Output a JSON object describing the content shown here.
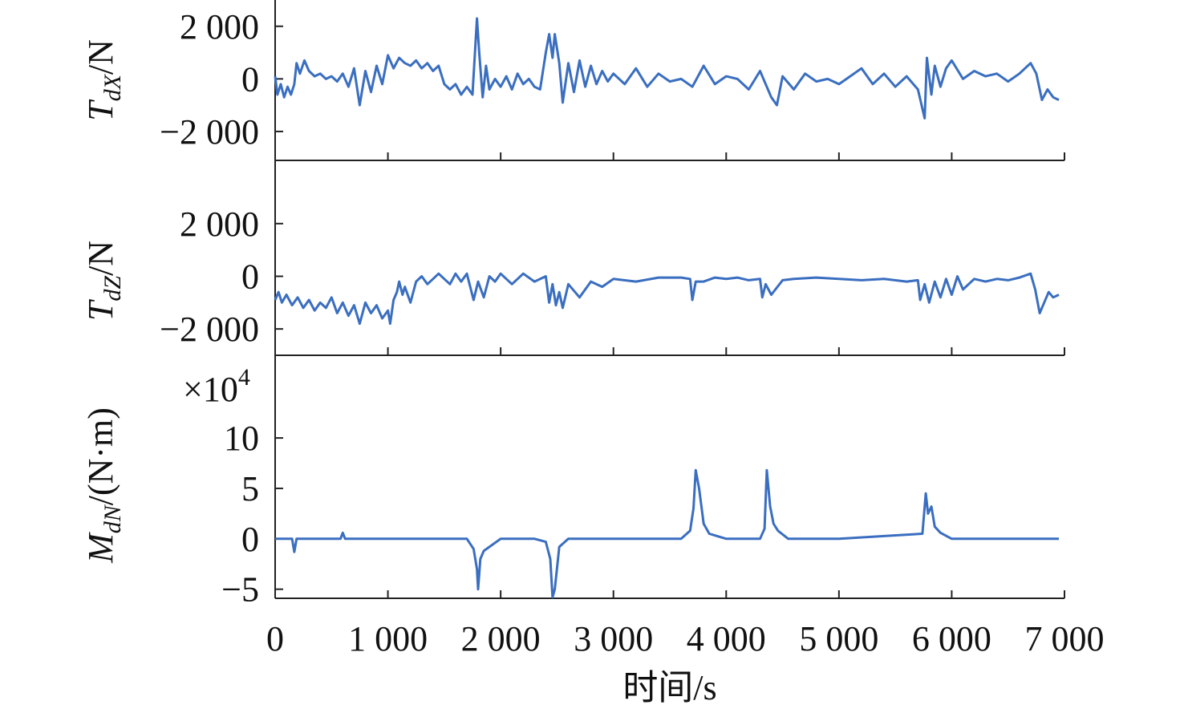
{
  "chart_data": [
    {
      "type": "line",
      "ylabel": {
        "main": "T",
        "sub": "dX",
        "unit": "/N"
      },
      "color": "#3a6ec0",
      "xlim": [
        0,
        7000
      ],
      "xticks": [
        0,
        1000,
        2000,
        3000,
        4000,
        5000,
        6000,
        7000
      ],
      "ylim": [
        -3100,
        3000
      ],
      "yticks": [
        {
          "value": 2000,
          "label": "2 000"
        },
        0,
        {
          "value": -2000,
          "label": "−2 000"
        }
      ],
      "x": [
        0,
        20,
        50,
        80,
        110,
        140,
        170,
        190,
        220,
        260,
        300,
        350,
        400,
        450,
        500,
        550,
        600,
        650,
        700,
        750,
        800,
        850,
        900,
        950,
        1000,
        1050,
        1100,
        1150,
        1200,
        1250,
        1300,
        1350,
        1400,
        1450,
        1500,
        1550,
        1600,
        1650,
        1700,
        1750,
        1790,
        1810,
        1840,
        1870,
        1900,
        1950,
        2000,
        2050,
        2100,
        2150,
        2200,
        2250,
        2300,
        2350,
        2400,
        2430,
        2460,
        2480,
        2520,
        2550,
        2600,
        2650,
        2700,
        2750,
        2800,
        2850,
        2900,
        2950,
        3000,
        3100,
        3200,
        3300,
        3400,
        3500,
        3600,
        3700,
        3800,
        3900,
        4000,
        4100,
        4200,
        4300,
        4400,
        4450,
        4500,
        4600,
        4700,
        4800,
        4900,
        5000,
        5100,
        5200,
        5300,
        5400,
        5500,
        5600,
        5700,
        5760,
        5780,
        5820,
        5850,
        5900,
        5950,
        6000,
        6100,
        6200,
        6300,
        6400,
        6500,
        6600,
        6700,
        6750,
        6800,
        6850,
        6900,
        6950
      ],
      "values": [
        100,
        -600,
        -200,
        -700,
        -300,
        -600,
        -200,
        600,
        200,
        700,
        300,
        100,
        200,
        0,
        100,
        -100,
        200,
        -300,
        400,
        -1000,
        300,
        -500,
        500,
        -200,
        900,
        400,
        800,
        600,
        500,
        700,
        400,
        600,
        300,
        500,
        -200,
        -400,
        -200,
        -600,
        -300,
        -600,
        2300,
        1000,
        -700,
        500,
        -400,
        0,
        -300,
        100,
        -400,
        200,
        -200,
        0,
        -300,
        -400,
        1000,
        1700,
        800,
        1700,
        600,
        -900,
        600,
        -500,
        700,
        -300,
        500,
        -200,
        300,
        -100,
        200,
        -200,
        400,
        -300,
        200,
        -100,
        0,
        -300,
        500,
        -200,
        100,
        0,
        -400,
        300,
        -700,
        -1000,
        100,
        -400,
        200,
        -100,
        0,
        -200,
        100,
        400,
        -200,
        200,
        -300,
        100,
        -400,
        -1500,
        800,
        -600,
        500,
        -300,
        400,
        700,
        0,
        300,
        100,
        200,
        -100,
        200,
        600,
        200,
        -800,
        -400,
        -700,
        -800
      ]
    },
    {
      "type": "line",
      "ylabel": {
        "main": "T",
        "sub": "dZ",
        "unit": "/N"
      },
      "color": "#3a6ec0",
      "xlim": [
        0,
        7000
      ],
      "xticks": [
        0,
        1000,
        2000,
        3000,
        4000,
        5000,
        6000,
        7000
      ],
      "ylim": [
        -3000,
        4400
      ],
      "yticks": [
        {
          "value": 2000,
          "label": "2 000"
        },
        0,
        {
          "value": -2000,
          "label": "−2 000"
        }
      ],
      "x": [
        0,
        30,
        60,
        100,
        150,
        200,
        250,
        300,
        350,
        400,
        450,
        500,
        550,
        600,
        650,
        700,
        750,
        800,
        850,
        900,
        950,
        1000,
        1020,
        1050,
        1080,
        1100,
        1130,
        1150,
        1200,
        1250,
        1300,
        1350,
        1400,
        1450,
        1500,
        1550,
        1600,
        1650,
        1700,
        1730,
        1760,
        1800,
        1850,
        1900,
        1950,
        2000,
        2100,
        2200,
        2300,
        2400,
        2430,
        2460,
        2490,
        2520,
        2550,
        2600,
        2700,
        2800,
        2900,
        3000,
        3200,
        3400,
        3600,
        3680,
        3700,
        3730,
        3800,
        3900,
        4000,
        4100,
        4200,
        4300,
        4320,
        4350,
        4400,
        4500,
        4600,
        4800,
        5000,
        5200,
        5400,
        5600,
        5700,
        5720,
        5760,
        5800,
        5850,
        5900,
        5950,
        6000,
        6050,
        6100,
        6200,
        6300,
        6400,
        6500,
        6600,
        6700,
        6740,
        6780,
        6820,
        6860,
        6900,
        6950
      ],
      "values": [
        -900,
        -600,
        -1000,
        -700,
        -1100,
        -800,
        -1200,
        -900,
        -1300,
        -1000,
        -1200,
        -800,
        -1400,
        -1000,
        -1500,
        -1100,
        -1800,
        -1000,
        -1400,
        -1100,
        -1600,
        -1300,
        -1800,
        -900,
        -600,
        -200,
        -700,
        -400,
        -1000,
        -200,
        0,
        -300,
        -100,
        100,
        -100,
        -300,
        100,
        -200,
        100,
        -400,
        -900,
        -200,
        -800,
        0,
        -200,
        100,
        -300,
        100,
        -200,
        0,
        -1000,
        -300,
        -1100,
        -600,
        -1200,
        -300,
        -800,
        -200,
        -400,
        -100,
        -200,
        -50,
        -50,
        -100,
        -900,
        -200,
        -200,
        -50,
        -100,
        -50,
        -150,
        -100,
        -800,
        -300,
        -700,
        -150,
        -100,
        -50,
        -100,
        -150,
        -100,
        -200,
        -150,
        -900,
        -300,
        -1000,
        -200,
        -800,
        -100,
        -700,
        0,
        -500,
        -100,
        -200,
        -100,
        -150,
        -50,
        100,
        -500,
        -1400,
        -1000,
        -600,
        -800,
        -700
      ]
    },
    {
      "type": "line",
      "ylabel": {
        "main": "M",
        "sub": "dN",
        "unit": "/(N·m)"
      },
      "multiplier": {
        "base": "×10",
        "exponent": "4"
      },
      "color": "#3a6ec0",
      "xlabel": "时间/s",
      "xlim": [
        0,
        7000
      ],
      "xticks": [
        0,
        {
          "value": 1000,
          "label": "1 000"
        },
        {
          "value": 2000,
          "label": "2 000"
        },
        {
          "value": 3000,
          "label": "3 000"
        },
        {
          "value": 4000,
          "label": "4 000"
        },
        {
          "value": 5000,
          "label": "5 000"
        },
        {
          "value": 6000,
          "label": "6 000"
        },
        {
          "value": 7000,
          "label": "7 000"
        }
      ],
      "ylim": [
        -5.9,
        18.2
      ],
      "yticks": [
        10,
        5,
        0,
        {
          "value": -5,
          "label": "−5"
        }
      ],
      "x": [
        0,
        150,
        170,
        190,
        300,
        580,
        600,
        620,
        1000,
        1700,
        1760,
        1790,
        1800,
        1820,
        1850,
        1900,
        2000,
        2300,
        2400,
        2440,
        2460,
        2480,
        2520,
        2600,
        3000,
        3600,
        3680,
        3710,
        3730,
        3760,
        3800,
        3850,
        4000,
        4300,
        4340,
        4360,
        4390,
        4420,
        4460,
        4550,
        5000,
        5740,
        5770,
        5790,
        5820,
        5850,
        5900,
        6000,
        6950
      ],
      "values": [
        0,
        0,
        -1.3,
        0,
        0,
        0,
        0.6,
        0,
        0,
        0,
        -1,
        -3,
        -5,
        -2,
        -1.2,
        -0.8,
        0,
        0,
        -0.3,
        -2,
        -5.8,
        -5,
        -0.8,
        0,
        0,
        0,
        0.8,
        3,
        6.8,
        5,
        1.5,
        0.5,
        0,
        0,
        1,
        6.8,
        3.2,
        1.5,
        0.8,
        0,
        0,
        0.5,
        4.5,
        2.5,
        3.2,
        1.2,
        0.6,
        0,
        0
      ]
    }
  ]
}
